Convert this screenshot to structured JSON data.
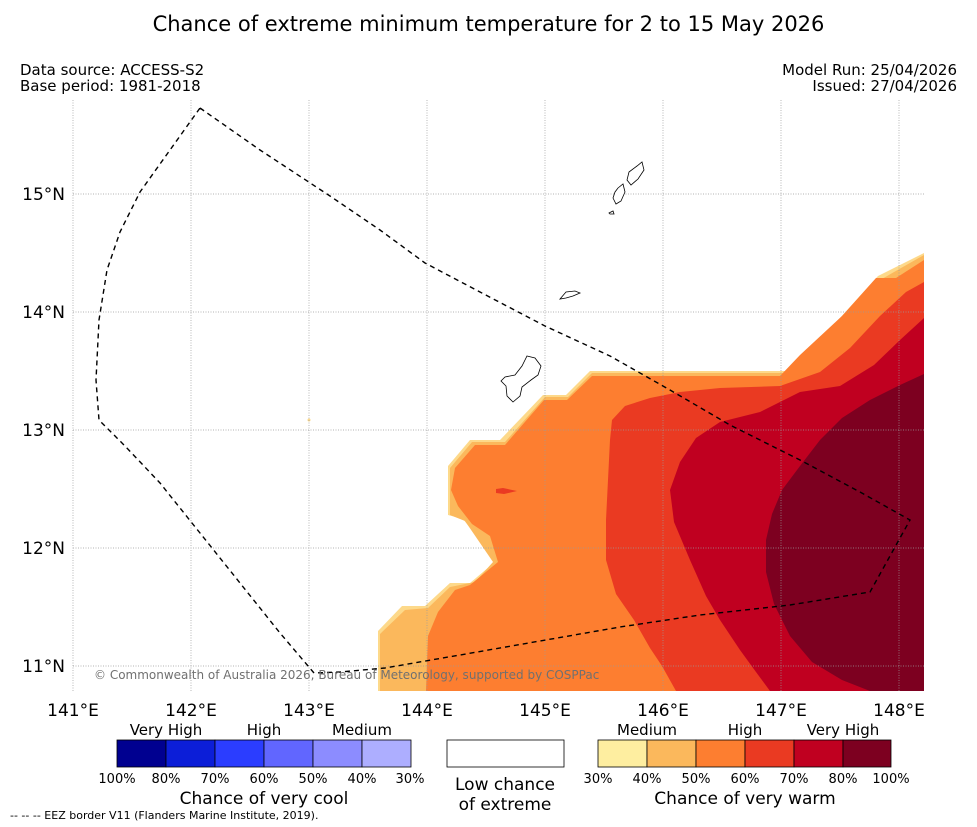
{
  "header": {
    "title": "Chance of extreme minimum temperature for 2 to 15 May 2026",
    "data_source": "Data source: ACCESS-S2",
    "base_period": "Base period: 1981-2018",
    "model_run": "Model Run: 25/04/2026",
    "issued": "Issued: 27/04/2026"
  },
  "map": {
    "longitude_labels": [
      "141°E",
      "142°E",
      "143°E",
      "144°E",
      "145°E",
      "146°E",
      "147°E",
      "148°E"
    ],
    "latitude_labels": [
      "15°N",
      "14°N",
      "13°N",
      "12°N",
      "11°N"
    ],
    "lon_range": [
      141.0,
      148.2
    ],
    "lat_range": [
      10.8,
      15.8
    ],
    "copyright": "© Commonwealth of Australia 2026, Bureau of Meteorology, supported by COSPPac",
    "colors": {
      "warm_30": "#fdd98a",
      "warm_40": "#fbb85c",
      "warm_50": "#fd7e30",
      "warm_60": "#ea3a22",
      "warm_70": "#c00020",
      "warm_80": "#7d0020",
      "island_outline": "#000000",
      "eez_line": "#000000",
      "gridline": "#9a9a9a"
    }
  },
  "legend": {
    "cool": {
      "group_labels": [
        "Very High",
        "High",
        "Medium"
      ],
      "ticks": [
        "100%",
        "80%",
        "70%",
        "60%",
        "50%",
        "40%",
        "30%"
      ],
      "title": "Chance of very cool",
      "colors": [
        "#000090",
        "#0c1ed8",
        "#2b3dff",
        "#6166ff",
        "#8c8cff",
        "#adaeff"
      ]
    },
    "low": {
      "line1": "Low chance",
      "line2": "of extreme",
      "color": "#ffffff"
    },
    "warm": {
      "group_labels": [
        "Medium",
        "High",
        "Very High"
      ],
      "ticks": [
        "30%",
        "40%",
        "50%",
        "60%",
        "70%",
        "80%",
        "100%"
      ],
      "title": "Chance of very warm",
      "colors": [
        "#feeea0",
        "#fbb85c",
        "#fd7e30",
        "#ea3a22",
        "#c00020",
        "#7d0020"
      ]
    }
  },
  "footer": {
    "eez_note": "--  --  -- EEZ border V11 (Flanders Marine Institute, 2019)."
  }
}
